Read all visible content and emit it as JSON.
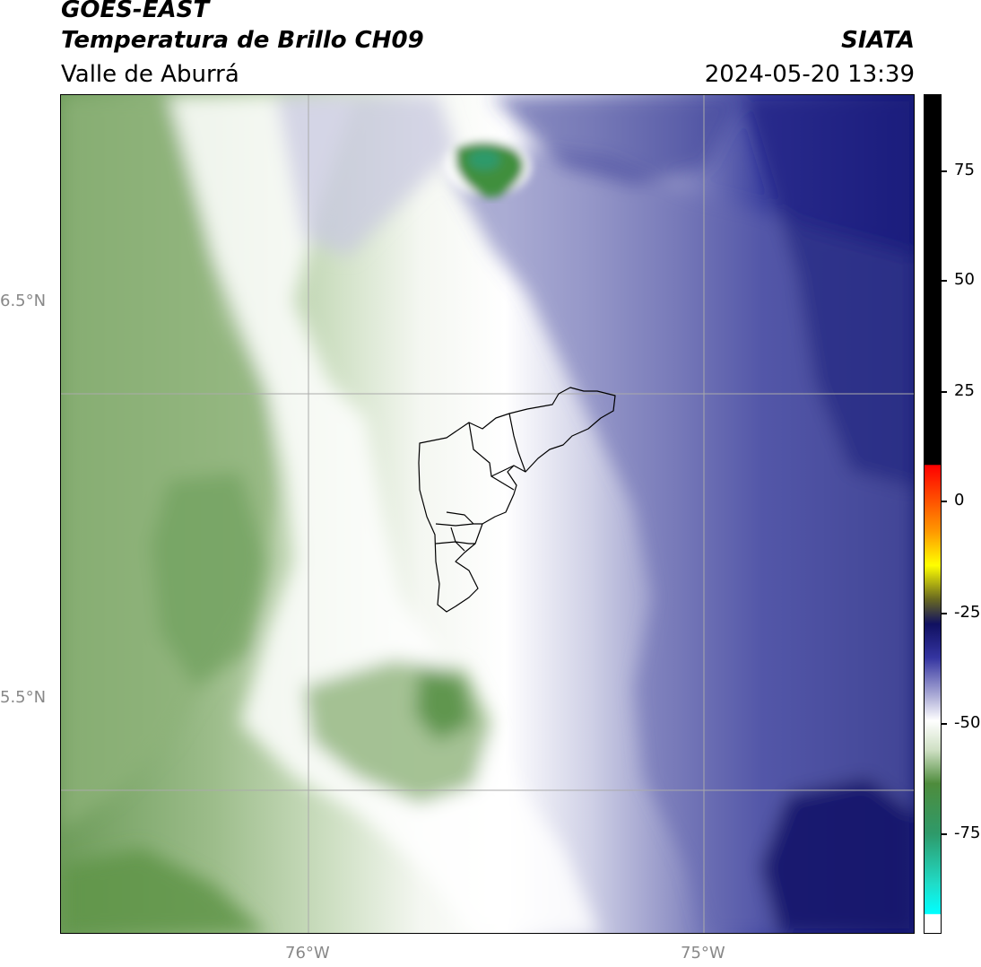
{
  "header": {
    "title_line1": "GOES-EAST",
    "title_line2": "Temperatura de Brillo CH09",
    "subtitle": "Valle de Aburrá",
    "agency": "SIATA",
    "timestamp": "2024-05-20 13:39"
  },
  "map": {
    "lat_labels": [
      "6.5°N",
      "5.5°N"
    ],
    "lon_labels": [
      "76°W",
      "75°W"
    ],
    "gridlines": true,
    "colors": {
      "white": "#ffffff",
      "light_green": "#dbe6d3",
      "green": "#8fb37a",
      "dark_green": "#4e8c3c",
      "light_purple": "#c8c8e0",
      "purple": "#8e90c4",
      "navy": "#2b2f8c",
      "dark_navy": "#10156b"
    }
  },
  "colorbar": {
    "tick_labels": [
      "75",
      "50",
      "25",
      "0",
      "-25",
      "-50",
      "-75"
    ],
    "tick_values": [
      75,
      50,
      25,
      0,
      -25,
      -50,
      -75
    ],
    "range": [
      -95,
      92
    ]
  }
}
